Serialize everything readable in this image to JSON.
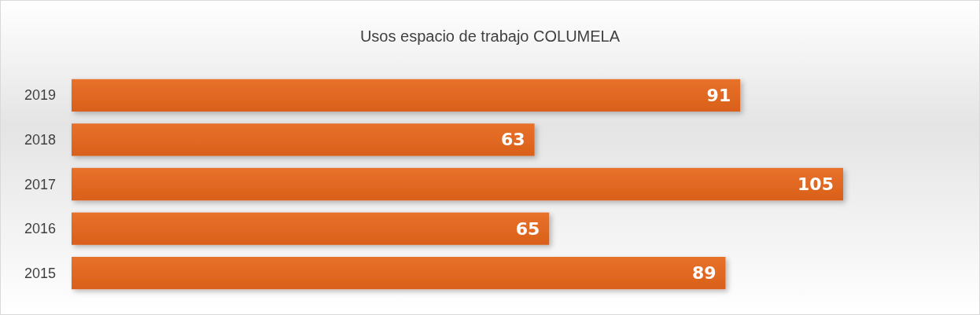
{
  "chart_data": {
    "type": "bar",
    "orientation": "horizontal",
    "title": "Usos espacio de trabajo COLUMELA",
    "categories": [
      "2019",
      "2018",
      "2017",
      "2016",
      "2015"
    ],
    "values": [
      91,
      63,
      105,
      65,
      89
    ],
    "color": "#e8712a",
    "data_labels": true
  }
}
